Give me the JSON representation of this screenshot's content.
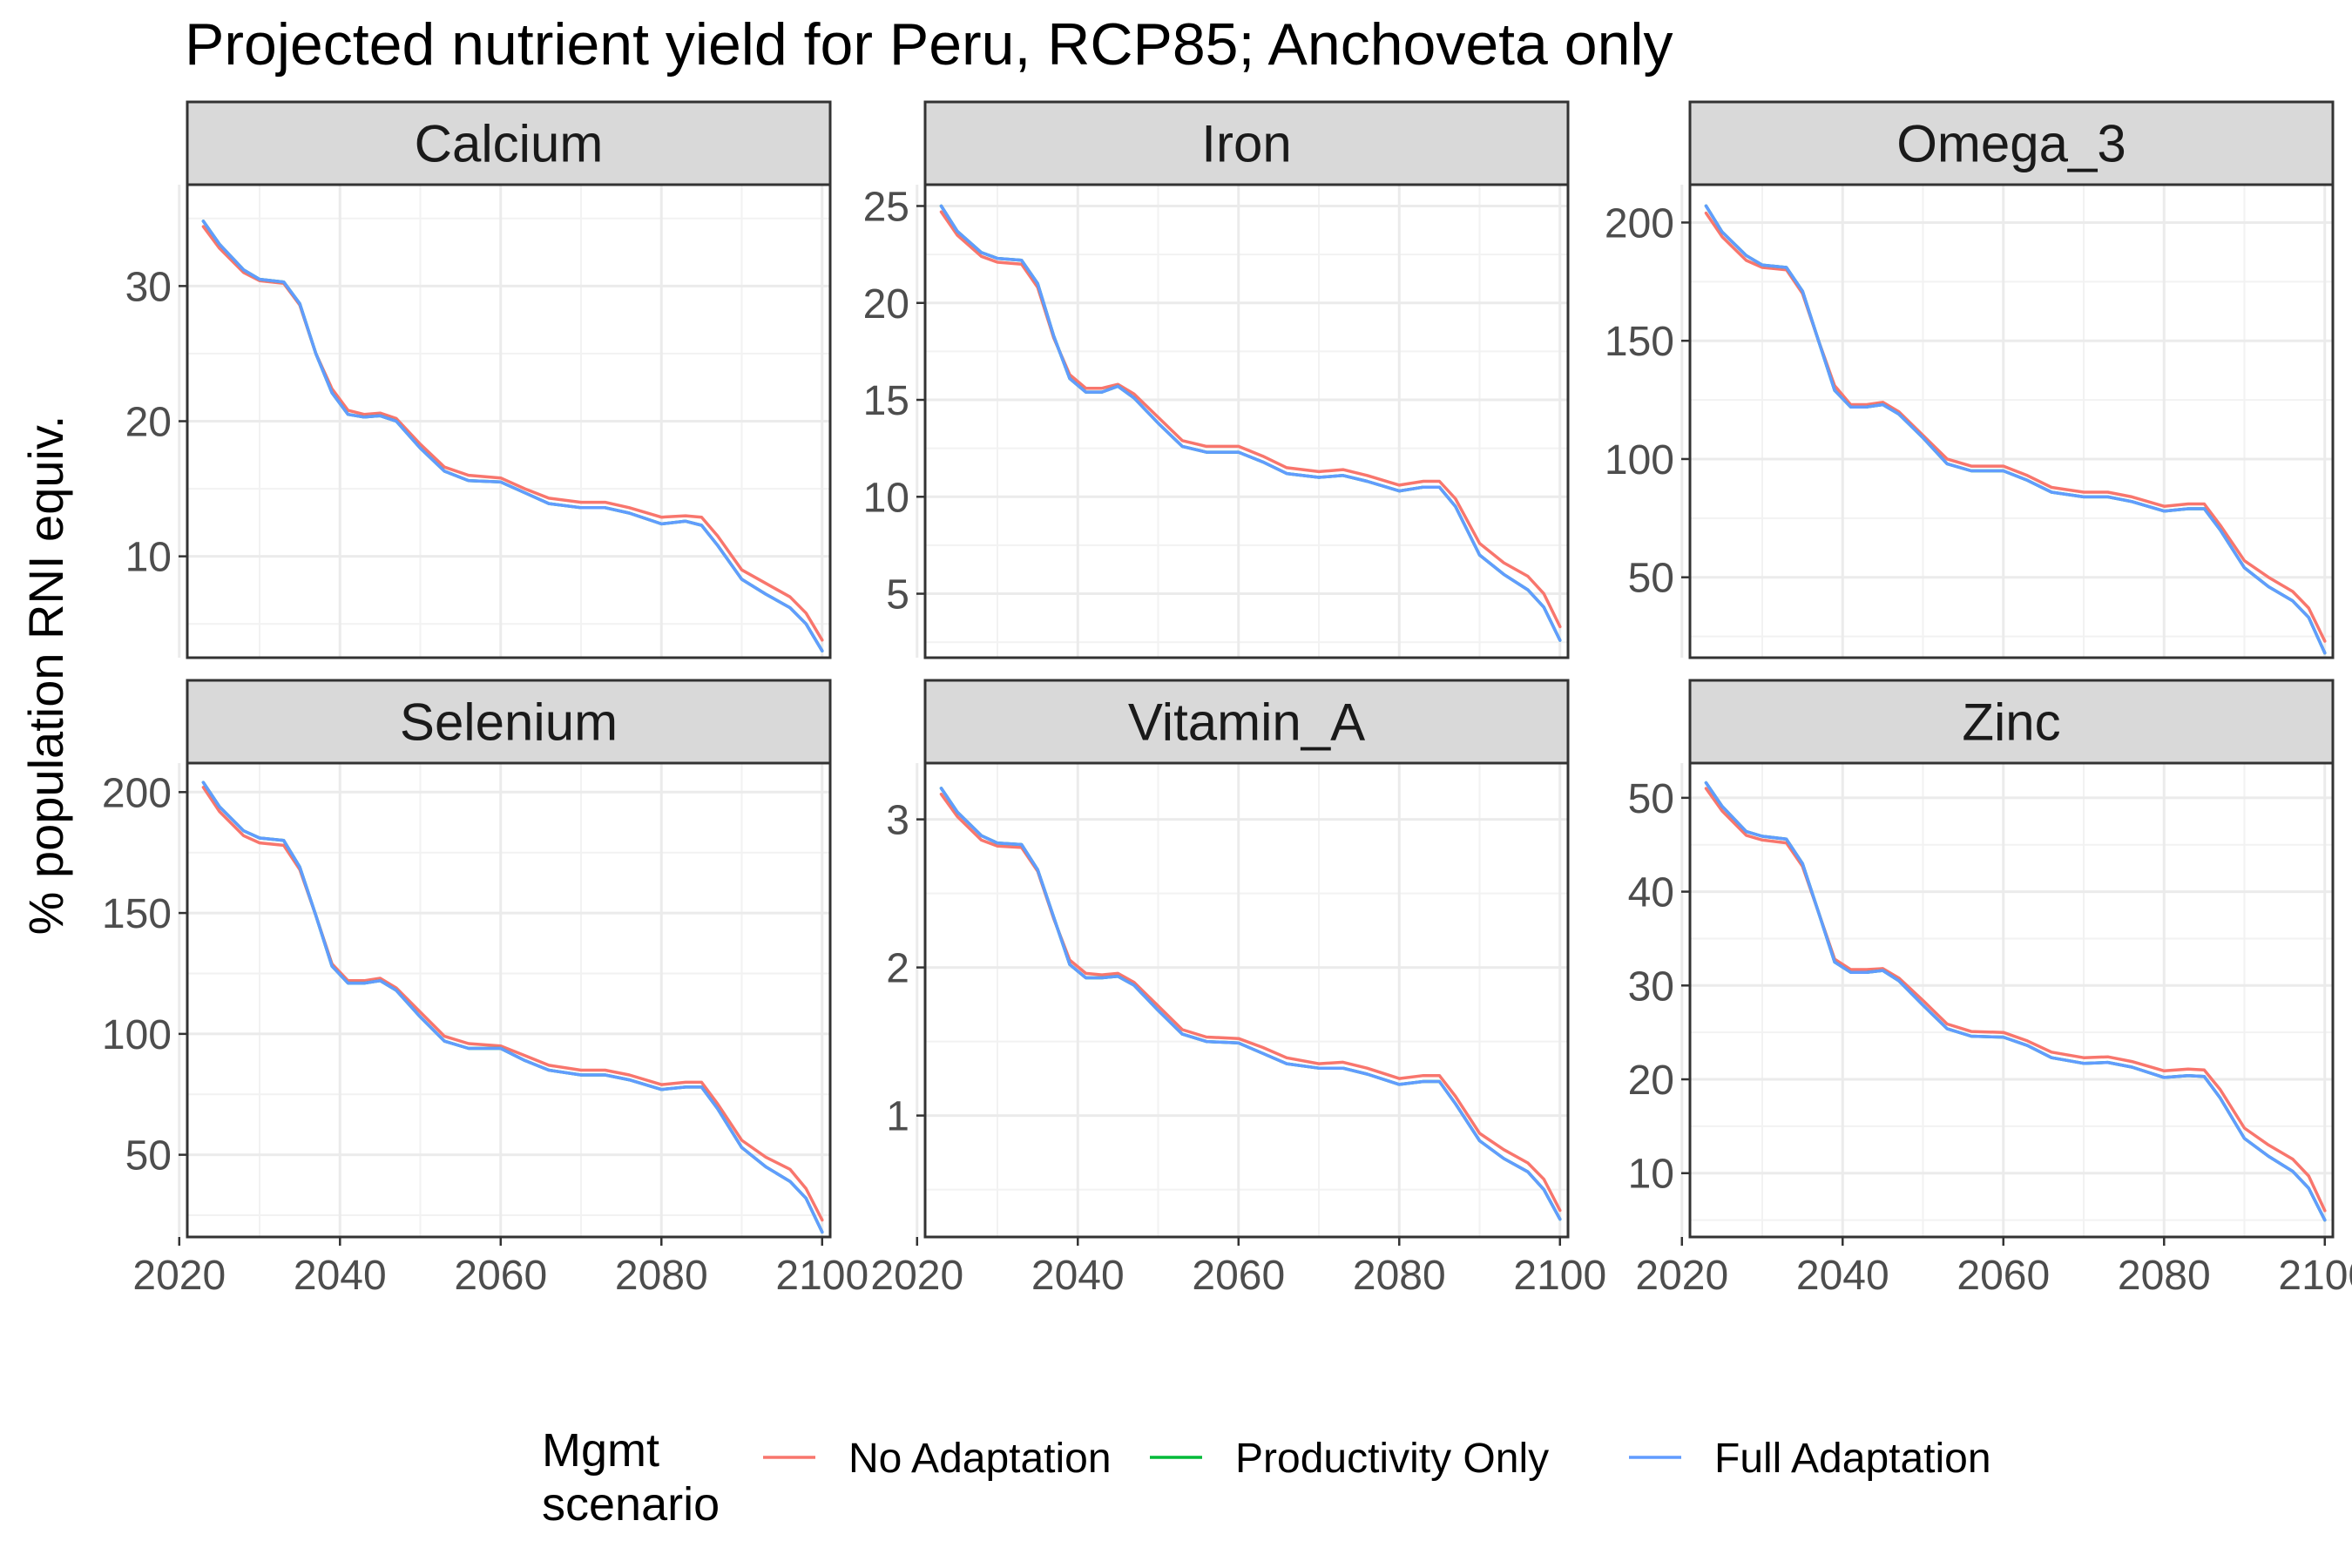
{
  "chart_data": {
    "type": "line",
    "title": "Projected nutrient yield for Peru, RCP85; Anchoveta only",
    "ylabel": "% population RNI equiv.",
    "xlabel": "",
    "xlim": [
      2021,
      2101
    ],
    "x_ticks": [
      2020,
      2040,
      2060,
      2080,
      2100
    ],
    "x": [
      2023,
      2025,
      2028,
      2030,
      2033,
      2035,
      2037,
      2039,
      2041,
      2043,
      2045,
      2047,
      2050,
      2053,
      2056,
      2060,
      2063,
      2066,
      2070,
      2073,
      2076,
      2080,
      2083,
      2085,
      2087,
      2090,
      2093,
      2096,
      2098,
      2100
    ],
    "legend": {
      "title": "Mgmt\nscenario",
      "position": "bottom",
      "entries": [
        {
          "label": "No Adaptation",
          "color": "#F8766D"
        },
        {
          "label": "Productivity Only",
          "color": "#00BA38"
        },
        {
          "label": "Full Adaptation",
          "color": "#619CFF"
        }
      ]
    },
    "grid": true,
    "panels": [
      {
        "name": "Calcium",
        "ylim": [
          2.5,
          37.5
        ],
        "y_ticks": [
          10,
          20,
          30
        ],
        "series": [
          {
            "name": "No Adaptation",
            "color": "#F8766D",
            "values": [
              34.4,
              32.8,
              31.0,
              30.4,
              30.2,
              28.6,
              25.0,
              22.4,
              20.8,
              20.5,
              20.6,
              20.2,
              18.3,
              16.6,
              16.0,
              15.8,
              15.0,
              14.3,
              14.0,
              14.0,
              13.6,
              12.9,
              13.0,
              12.9,
              11.5,
              9.0,
              8.0,
              7.0,
              5.8,
              3.8
            ]
          },
          {
            "name": "Productivity Only",
            "color": "#00BA38",
            "values": [
              34.8,
              33.1,
              31.2,
              30.5,
              30.3,
              28.7,
              25.0,
              22.1,
              20.5,
              20.3,
              20.4,
              20.0,
              18.0,
              16.3,
              15.6,
              15.5,
              14.7,
              13.9,
              13.6,
              13.6,
              13.2,
              12.4,
              12.6,
              12.3,
              10.8,
              8.3,
              7.2,
              6.2,
              5.0,
              3.0
            ]
          },
          {
            "name": "Full Adaptation",
            "color": "#619CFF",
            "values": [
              34.8,
              33.1,
              31.2,
              30.5,
              30.3,
              28.7,
              25.0,
              22.1,
              20.5,
              20.3,
              20.4,
              20.0,
              18.0,
              16.3,
              15.6,
              15.5,
              14.7,
              13.9,
              13.6,
              13.6,
              13.2,
              12.4,
              12.6,
              12.3,
              10.8,
              8.3,
              7.2,
              6.2,
              5.0,
              3.0
            ]
          }
        ]
      },
      {
        "name": "Iron",
        "ylim": [
          1.7,
          26.1
        ],
        "y_ticks": [
          5,
          10,
          15,
          20,
          25
        ],
        "series": [
          {
            "name": "No Adaptation",
            "color": "#F8766D",
            "values": [
              24.7,
              23.5,
              22.4,
              22.1,
              22.0,
              20.8,
              18.2,
              16.3,
              15.6,
              15.6,
              15.8,
              15.3,
              14.1,
              12.9,
              12.6,
              12.6,
              12.1,
              11.5,
              11.3,
              11.4,
              11.1,
              10.6,
              10.8,
              10.8,
              9.9,
              7.6,
              6.6,
              5.9,
              5.0,
              3.3
            ]
          },
          {
            "name": "Productivity Only",
            "color": "#00BA38",
            "values": [
              25.0,
              23.7,
              22.6,
              22.3,
              22.2,
              21.0,
              18.3,
              16.1,
              15.4,
              15.4,
              15.7,
              15.1,
              13.8,
              12.6,
              12.3,
              12.3,
              11.8,
              11.2,
              11.0,
              11.1,
              10.8,
              10.3,
              10.5,
              10.5,
              9.5,
              7.0,
              6.0,
              5.2,
              4.3,
              2.6
            ]
          },
          {
            "name": "Full Adaptation",
            "color": "#619CFF",
            "values": [
              25.0,
              23.7,
              22.6,
              22.3,
              22.2,
              21.0,
              18.3,
              16.1,
              15.4,
              15.4,
              15.7,
              15.1,
              13.8,
              12.6,
              12.3,
              12.3,
              11.8,
              11.2,
              11.0,
              11.1,
              10.8,
              10.3,
              10.5,
              10.5,
              9.5,
              7.0,
              6.0,
              5.2,
              4.3,
              2.6
            ]
          }
        ]
      },
      {
        "name": "Omega_3",
        "ylim": [
          16,
          216
        ],
        "y_ticks": [
          50,
          100,
          150,
          200
        ],
        "series": [
          {
            "name": "No Adaptation",
            "color": "#F8766D",
            "values": [
              204,
              194,
              184,
              181,
              180,
              170,
              150,
              131,
              123,
              123,
              124,
              120,
              110,
              100,
              97,
              97,
              93,
              88,
              86,
              86,
              84,
              80,
              81,
              81,
              72,
              57,
              50,
              44,
              37,
              23
            ]
          },
          {
            "name": "Productivity Only",
            "color": "#00BA38",
            "values": [
              207,
              196,
              186,
              182,
              181,
              171,
              150,
              129,
              122,
              122,
              123,
              119,
              109,
              98,
              95,
              95,
              91,
              86,
              84,
              84,
              82,
              78,
              79,
              79,
              70,
              54,
              46,
              40,
              33,
              18
            ]
          },
          {
            "name": "Full Adaptation",
            "color": "#619CFF",
            "values": [
              207,
              196,
              186,
              182,
              181,
              171,
              150,
              129,
              122,
              122,
              123,
              119,
              109,
              98,
              95,
              95,
              91,
              86,
              84,
              84,
              82,
              78,
              79,
              79,
              70,
              54,
              46,
              40,
              33,
              18
            ]
          }
        ]
      },
      {
        "name": "Selenium",
        "ylim": [
          16,
          212
        ],
        "y_ticks": [
          50,
          100,
          150,
          200
        ],
        "series": [
          {
            "name": "No Adaptation",
            "color": "#F8766D",
            "values": [
              202,
              192,
              182,
              179,
              178,
              168,
              149,
              129,
              122,
              122,
              123,
              119,
              109,
              99,
              96,
              95,
              91,
              87,
              85,
              85,
              83,
              79,
              80,
              80,
              71,
              56,
              49,
              44,
              36,
              23
            ]
          },
          {
            "name": "Productivity Only",
            "color": "#00BA38",
            "values": [
              204,
              194,
              184,
              181,
              180,
              169,
              149,
              128,
              121,
              121,
              122,
              118,
              107,
              97,
              94,
              94,
              89,
              85,
              83,
              83,
              81,
              77,
              78,
              78,
              69,
              53,
              45,
              39,
              32,
              18
            ]
          },
          {
            "name": "Full Adaptation",
            "color": "#619CFF",
            "values": [
              204,
              194,
              184,
              181,
              180,
              169,
              149,
              128,
              121,
              121,
              122,
              118,
              107,
              97,
              94,
              94,
              89,
              85,
              83,
              83,
              81,
              77,
              78,
              78,
              69,
              53,
              45,
              39,
              32,
              18
            ]
          }
        ]
      },
      {
        "name": "Vitamin_A",
        "ylim": [
          0.18,
          3.38
        ],
        "y_ticks": [
          1,
          2,
          3
        ],
        "series": [
          {
            "name": "No Adaptation",
            "color": "#F8766D",
            "values": [
              3.17,
              3.02,
              2.86,
              2.82,
              2.81,
              2.65,
              2.33,
              2.05,
              1.96,
              1.95,
              1.96,
              1.9,
              1.74,
              1.58,
              1.53,
              1.52,
              1.46,
              1.39,
              1.35,
              1.36,
              1.32,
              1.25,
              1.27,
              1.27,
              1.13,
              0.88,
              0.77,
              0.68,
              0.57,
              0.36
            ]
          },
          {
            "name": "Productivity Only",
            "color": "#00BA38",
            "values": [
              3.21,
              3.05,
              2.89,
              2.84,
              2.83,
              2.66,
              2.34,
              2.02,
              1.93,
              1.93,
              1.94,
              1.88,
              1.71,
              1.55,
              1.5,
              1.49,
              1.42,
              1.35,
              1.32,
              1.32,
              1.28,
              1.21,
              1.23,
              1.23,
              1.08,
              0.83,
              0.71,
              0.62,
              0.5,
              0.3
            ]
          },
          {
            "name": "Full Adaptation",
            "color": "#619CFF",
            "values": [
              3.21,
              3.05,
              2.89,
              2.84,
              2.83,
              2.66,
              2.34,
              2.02,
              1.93,
              1.93,
              1.94,
              1.88,
              1.71,
              1.55,
              1.5,
              1.49,
              1.42,
              1.35,
              1.32,
              1.32,
              1.28,
              1.21,
              1.23,
              1.23,
              1.08,
              0.83,
              0.71,
              0.62,
              0.5,
              0.3
            ]
          }
        ]
      },
      {
        "name": "Zinc",
        "ylim": [
          3.2,
          53.7
        ],
        "y_ticks": [
          10,
          20,
          30,
          40,
          50
        ],
        "series": [
          {
            "name": "No Adaptation",
            "color": "#F8766D",
            "values": [
              51.0,
              48.6,
              46.0,
              45.5,
              45.2,
              42.7,
              37.8,
              32.8,
              31.7,
              31.7,
              31.8,
              30.8,
              28.4,
              25.9,
              25.1,
              25.0,
              24.1,
              22.9,
              22.3,
              22.4,
              21.9,
              20.9,
              21.1,
              21.0,
              18.9,
              14.8,
              13.0,
              11.5,
              9.7,
              6.0
            ]
          },
          {
            "name": "Productivity Only",
            "color": "#00BA38",
            "values": [
              51.6,
              49.1,
              46.4,
              45.9,
              45.6,
              43.0,
              37.8,
              32.5,
              31.4,
              31.4,
              31.6,
              30.5,
              27.9,
              25.4,
              24.6,
              24.5,
              23.6,
              22.3,
              21.7,
              21.8,
              21.3,
              20.2,
              20.4,
              20.3,
              18.0,
              13.7,
              11.8,
              10.2,
              8.4,
              5.0
            ]
          },
          {
            "name": "Full Adaptation",
            "color": "#619CFF",
            "values": [
              51.6,
              49.1,
              46.4,
              45.9,
              45.6,
              43.0,
              37.8,
              32.5,
              31.4,
              31.4,
              31.6,
              30.5,
              27.9,
              25.4,
              24.6,
              24.5,
              23.6,
              22.3,
              21.7,
              21.8,
              21.3,
              20.2,
              20.4,
              20.3,
              18.0,
              13.7,
              11.8,
              10.2,
              8.4,
              5.0
            ]
          }
        ]
      }
    ]
  }
}
